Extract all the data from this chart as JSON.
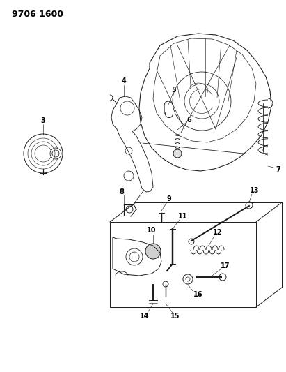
{
  "title": "9706 1600",
  "bg_color": "#ffffff",
  "line_color": "#1a1a1a",
  "title_fontsize": 9,
  "label_fontsize": 7,
  "fig_width": 4.11,
  "fig_height": 5.33,
  "dpi": 100
}
